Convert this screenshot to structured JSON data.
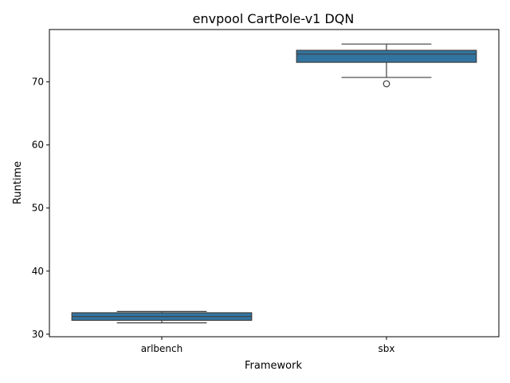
{
  "chart_data": {
    "type": "box",
    "title": "envpool CartPole-v1 DQN",
    "xlabel": "Framework",
    "ylabel": "Runtime",
    "categories": [
      "arlbench",
      "sbx"
    ],
    "boxes": [
      {
        "category": "arlbench",
        "whisker_low": 31.8,
        "q1": 32.2,
        "median": 32.8,
        "q3": 33.4,
        "whisker_high": 33.6,
        "outliers": []
      },
      {
        "category": "sbx",
        "whisker_low": 70.7,
        "q1": 73.1,
        "median": 74.4,
        "q3": 75.0,
        "whisker_high": 76.0,
        "outliers": [
          69.7
        ]
      }
    ],
    "yticks": [
      30,
      40,
      50,
      60,
      70
    ],
    "ylim": [
      29.6,
      78.3
    ],
    "box_color": "#3274a1",
    "line_color": "#3f3f3f",
    "grid": false,
    "legend": "none"
  }
}
